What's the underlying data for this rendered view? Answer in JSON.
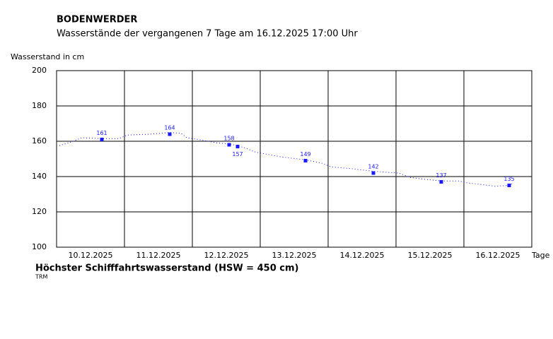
{
  "chart_data": {
    "type": "line",
    "title": "BODENWERDER",
    "subtitle": "Wasserstände der vergangenen 7 Tage am 16.12.2025 17:00 Uhr",
    "y_label": "Wasserstand in cm",
    "x_label": "Tage",
    "footer": "Höchster Schifffahrtswasserstand (HSW = 450 cm)",
    "source": "TRM",
    "xlim": [
      0,
      168
    ],
    "xticks": [
      {
        "value": 12,
        "label": "10.12.2025"
      },
      {
        "value": 36,
        "label": "11.12.2025"
      },
      {
        "value": 60,
        "label": "12.12.2025"
      },
      {
        "value": 84,
        "label": "13.12.2025"
      },
      {
        "value": 108,
        "label": "14.12.2025"
      },
      {
        "value": 132,
        "label": "15.12.2025"
      },
      {
        "value": 156,
        "label": "16.12.2025"
      }
    ],
    "ylim": [
      100,
      200
    ],
    "yticks": [
      100,
      120,
      140,
      160,
      180,
      200
    ],
    "grid": true,
    "series": [
      {
        "color": "#1a1aff",
        "style": "dotted",
        "x": [
          1,
          5,
          9,
          16,
          22,
          25,
          33,
          40,
          44,
          46,
          50,
          57,
          61,
          64,
          67,
          70,
          73,
          80,
          88,
          94,
          97,
          104,
          112,
          116,
          121,
          125,
          130,
          136,
          142,
          145,
          152.5,
          155,
          160,
          161.5
        ],
        "values": [
          157.5,
          159.5,
          162,
          161.5,
          161.5,
          163.5,
          164,
          165,
          164.5,
          162,
          161,
          159,
          158.5,
          157.5,
          156,
          154,
          153,
          151,
          149.5,
          147.5,
          145.5,
          144.5,
          143,
          142.5,
          142,
          139.5,
          138.5,
          137.5,
          137.5,
          136.5,
          135,
          134.5,
          135,
          136.5
        ]
      },
      {
        "color": "#1a1aff",
        "style": "markers",
        "x": [
          16,
          40,
          61,
          64,
          88,
          112,
          136,
          160
        ],
        "values": [
          161,
          164,
          158,
          157,
          149,
          142,
          137,
          135
        ]
      }
    ]
  }
}
